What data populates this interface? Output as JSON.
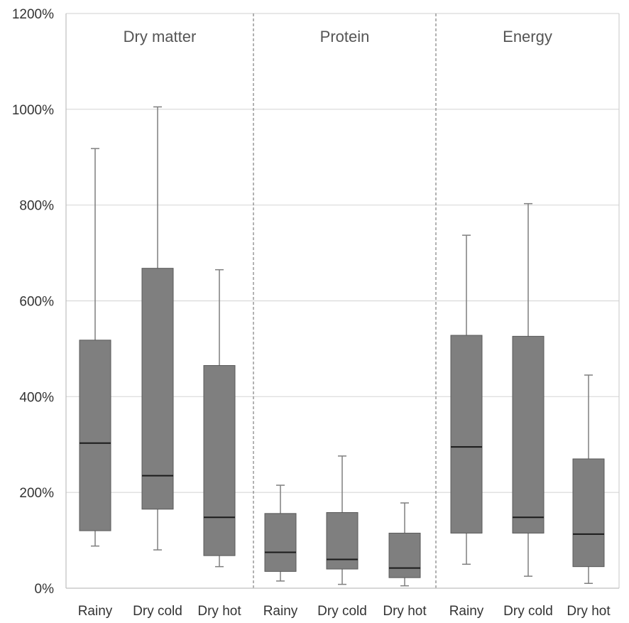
{
  "chart_data": {
    "type": "boxplot",
    "y_tick_labels": [
      "0%",
      "200%",
      "400%",
      "600%",
      "800%",
      "1000%",
      "1200%"
    ],
    "y_ticks": [
      0,
      200,
      400,
      600,
      800,
      1000,
      1200
    ],
    "ylim": [
      0,
      1200
    ],
    "grid": true,
    "colors": {
      "box_fill": "#7f7f7f",
      "box_stroke": "#5a5a5a",
      "median": "#1a1a1a",
      "whisker": "#7f7f7f",
      "grid": "#d9d9d9",
      "separator": "#7f7f7f"
    },
    "panels": [
      {
        "title": "Dry matter",
        "groups": [
          {
            "category": "Rainy",
            "min": 88,
            "q1": 120,
            "median": 303,
            "q3": 518,
            "max": 918
          },
          {
            "category": "Dry cold",
            "min": 80,
            "q1": 165,
            "median": 235,
            "q3": 668,
            "max": 1005
          },
          {
            "category": "Dry hot",
            "min": 45,
            "q1": 68,
            "median": 148,
            "q3": 465,
            "max": 665
          }
        ]
      },
      {
        "title": "Protein",
        "groups": [
          {
            "category": "Rainy",
            "min": 15,
            "q1": 35,
            "median": 75,
            "q3": 156,
            "max": 215
          },
          {
            "category": "Dry cold",
            "min": 8,
            "q1": 40,
            "median": 60,
            "q3": 158,
            "max": 276
          },
          {
            "category": "Dry hot",
            "min": 5,
            "q1": 22,
            "median": 42,
            "q3": 115,
            "max": 178
          }
        ]
      },
      {
        "title": "Energy",
        "groups": [
          {
            "category": "Rainy",
            "min": 50,
            "q1": 115,
            "median": 295,
            "q3": 528,
            "max": 737
          },
          {
            "category": "Dry cold",
            "min": 25,
            "q1": 115,
            "median": 148,
            "q3": 526,
            "max": 803
          },
          {
            "category": "Dry hot",
            "min": 10,
            "q1": 45,
            "median": 113,
            "q3": 270,
            "max": 445
          }
        ]
      }
    ]
  }
}
